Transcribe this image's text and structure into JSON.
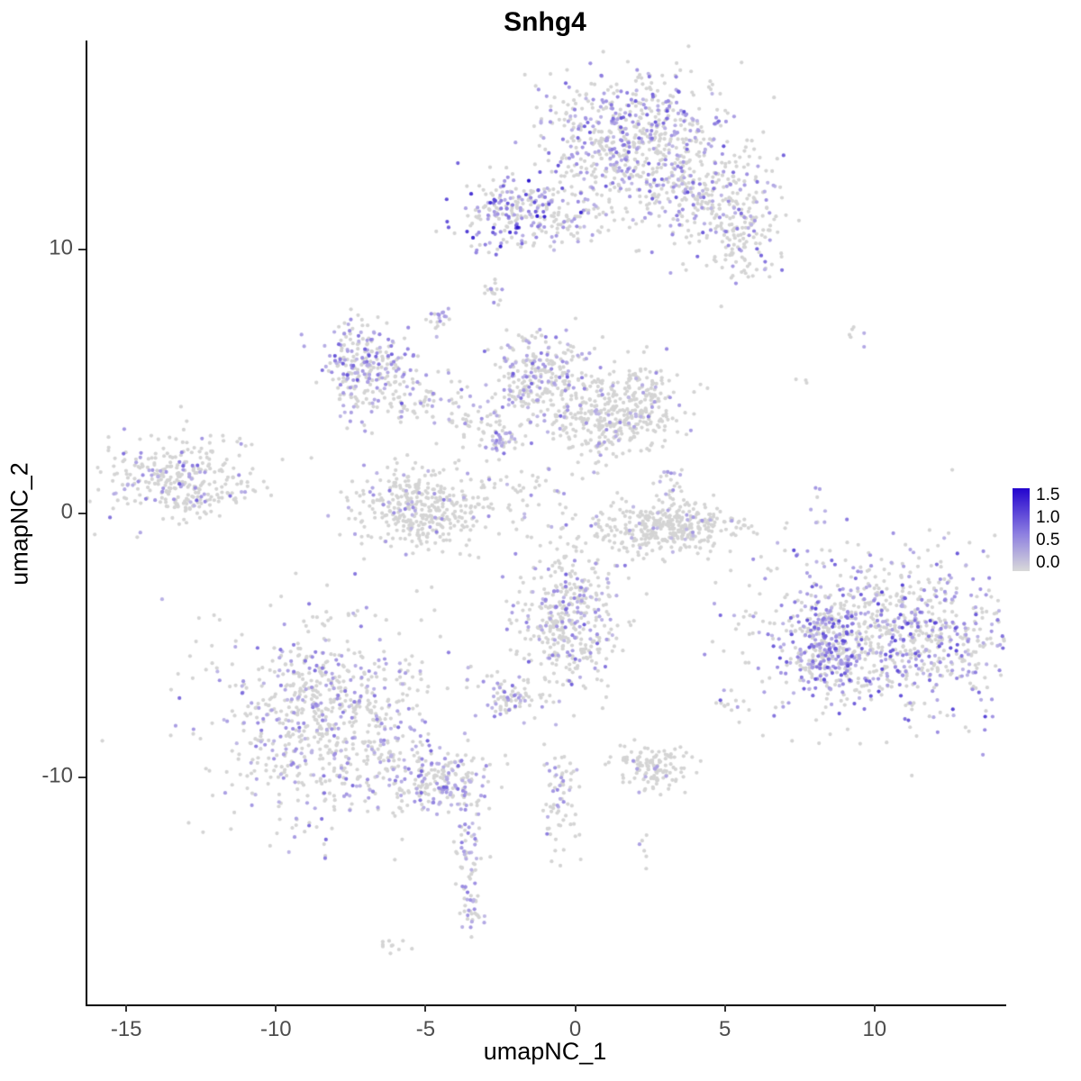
{
  "title": "Snhg4",
  "axes": {
    "x_label": "umapNC_1",
    "y_label": "umapNC_2",
    "x_ticks": [
      -15,
      -10,
      -5,
      0,
      5,
      10
    ],
    "y_ticks": [
      10,
      0,
      -10
    ],
    "x_range": [
      -16.3,
      14.4
    ],
    "y_range": [
      -18.6,
      17.9
    ]
  },
  "legend": {
    "ticks": [
      "1.5",
      "1.0",
      "0.5",
      "0.0"
    ],
    "high_color": "#2303CE",
    "mid_color": "#8D7FE0",
    "low_color": "#D9D9D9"
  },
  "chart_data": {
    "type": "scatter",
    "title": "Snhg4",
    "xlabel": "umapNC_1",
    "ylabel": "umapNC_2",
    "xlim": [
      -16.3,
      14.4
    ],
    "ylim": [
      -18.6,
      17.9
    ],
    "expression_range": [
      0.0,
      1.75
    ],
    "legend_ticks": [
      1.5,
      1.0,
      0.5,
      0.0
    ],
    "point_color_low": "#D4D4D4",
    "point_color_lowexpr": "#C9C4E6",
    "point_color_mid": "#9A8BE2",
    "point_color_high": "#2B16CE",
    "seed": 7,
    "point_radius": 2.1,
    "clusters": [
      {
        "cx": 1.9,
        "cy": 14.2,
        "rx": 1.45,
        "ry": 1.35,
        "n": 700,
        "expr_frac": 0.35,
        "vmax": 1.3
      },
      {
        "cx": 4.6,
        "cy": 11.8,
        "rx": 1.1,
        "ry": 0.85,
        "n": 250,
        "expr_frac": 0.25,
        "vmax": 1.2
      },
      {
        "cx": 5.7,
        "cy": 10.2,
        "rx": 0.6,
        "ry": 0.8,
        "n": 80,
        "expr_frac": 0.18,
        "vmax": 1.3
      },
      {
        "cx": -2.1,
        "cy": 11.4,
        "rx": 0.85,
        "ry": 0.7,
        "n": 220,
        "expr_frac": 0.4,
        "vmax": 1.75
      },
      {
        "cx": -0.3,
        "cy": 11.1,
        "rx": 0.9,
        "ry": 0.55,
        "n": 60,
        "expr_frac": 0.2,
        "vmax": 1.1
      },
      {
        "cx": -2.7,
        "cy": 8.5,
        "rx": 0.15,
        "ry": 0.3,
        "n": 15,
        "expr_frac": 0.3,
        "vmax": 0.9
      },
      {
        "cx": -4.5,
        "cy": 7.4,
        "rx": 0.2,
        "ry": 0.25,
        "n": 18,
        "expr_frac": 0.4,
        "vmax": 1.1
      },
      {
        "cx": -7.0,
        "cy": 5.5,
        "rx": 0.7,
        "ry": 0.9,
        "n": 260,
        "expr_frac": 0.45,
        "vmax": 1.3
      },
      {
        "cx": -5.0,
        "cy": 4.3,
        "rx": 0.9,
        "ry": 0.5,
        "n": 60,
        "expr_frac": 0.2,
        "vmax": 1.0
      },
      {
        "cx": -1.1,
        "cy": 5.3,
        "rx": 0.9,
        "ry": 0.8,
        "n": 280,
        "expr_frac": 0.3,
        "vmax": 1.2
      },
      {
        "cx": 1.9,
        "cy": 4.1,
        "rx": 0.75,
        "ry": 0.75,
        "n": 260,
        "expr_frac": 0.12,
        "vmax": 1.0
      },
      {
        "cx": 0.4,
        "cy": 3.6,
        "rx": 0.8,
        "ry": 0.5,
        "n": 120,
        "expr_frac": 0.1,
        "vmax": 0.8
      },
      {
        "cx": -2.4,
        "cy": 2.7,
        "rx": 0.3,
        "ry": 0.3,
        "n": 40,
        "expr_frac": 0.5,
        "vmax": 1.2
      },
      {
        "cx": -3.3,
        "cy": 3.6,
        "rx": 0.8,
        "ry": 0.5,
        "n": 50,
        "expr_frac": 0.2,
        "vmax": 0.9
      },
      {
        "cx": -1.7,
        "cy": 1.0,
        "rx": 0.9,
        "ry": 0.6,
        "n": 40,
        "expr_frac": 0.15,
        "vmax": 0.8
      },
      {
        "cx": -5.0,
        "cy": 0.2,
        "rx": 1.1,
        "ry": 0.8,
        "n": 380,
        "expr_frac": 0.12,
        "vmax": 1.0
      },
      {
        "cx": -13.1,
        "cy": 1.2,
        "rx": 1.25,
        "ry": 0.8,
        "n": 330,
        "expr_frac": 0.2,
        "vmax": 1.2
      },
      {
        "cx": 3.2,
        "cy": 1.2,
        "rx": 0.25,
        "ry": 0.5,
        "n": 25,
        "expr_frac": 0.3,
        "vmax": 1.0
      },
      {
        "cx": 3.1,
        "cy": -0.5,
        "rx": 1.25,
        "ry": 0.5,
        "n": 380,
        "expr_frac": 0.05,
        "vmax": 0.8
      },
      {
        "cx": -0.3,
        "cy": -3.9,
        "rx": 0.85,
        "ry": 1.45,
        "n": 420,
        "expr_frac": 0.25,
        "vmax": 1.2
      },
      {
        "cx": -2.3,
        "cy": -7.0,
        "rx": 0.5,
        "ry": 0.4,
        "n": 70,
        "expr_frac": 0.3,
        "vmax": 1.1
      },
      {
        "cx": 10.5,
        "cy": -4.6,
        "rx": 2.2,
        "ry": 1.55,
        "n": 950,
        "expr_frac": 0.4,
        "vmax": 1.4
      },
      {
        "cx": 8.4,
        "cy": -5.1,
        "rx": 0.5,
        "ry": 0.8,
        "n": 200,
        "expr_frac": 0.6,
        "vmax": 1.3
      },
      {
        "cx": 8.1,
        "cy": 0.3,
        "rx": 0.15,
        "ry": 0.5,
        "n": 8,
        "expr_frac": 0.5,
        "vmax": 1.2
      },
      {
        "cx": 9.4,
        "cy": 6.8,
        "rx": 0.2,
        "ry": 0.2,
        "n": 6,
        "expr_frac": 0.1,
        "vmax": 0.6
      },
      {
        "cx": 7.6,
        "cy": 5.0,
        "rx": 0.15,
        "ry": 0.15,
        "n": 3,
        "expr_frac": 0.1,
        "vmax": 0.5
      },
      {
        "cx": -8.3,
        "cy": -7.8,
        "rx": 1.85,
        "ry": 1.85,
        "n": 800,
        "expr_frac": 0.3,
        "vmax": 1.1
      },
      {
        "cx": -4.7,
        "cy": -10.1,
        "rx": 0.9,
        "ry": 0.6,
        "n": 220,
        "expr_frac": 0.35,
        "vmax": 1.2
      },
      {
        "cx": -3.6,
        "cy": -12.8,
        "rx": 0.25,
        "ry": 1.2,
        "n": 60,
        "expr_frac": 0.3,
        "vmax": 1.0
      },
      {
        "cx": -3.5,
        "cy": -15.0,
        "rx": 0.25,
        "ry": 0.45,
        "n": 25,
        "expr_frac": 0.4,
        "vmax": 1.1
      },
      {
        "cx": -6.0,
        "cy": -16.3,
        "rx": 0.3,
        "ry": 0.15,
        "n": 10,
        "expr_frac": 0.1,
        "vmax": 0.5
      },
      {
        "cx": -0.5,
        "cy": -10.9,
        "rx": 0.3,
        "ry": 1.1,
        "n": 70,
        "expr_frac": 0.25,
        "vmax": 1.0
      },
      {
        "cx": 2.5,
        "cy": -9.6,
        "rx": 0.65,
        "ry": 0.45,
        "n": 130,
        "expr_frac": 0.08,
        "vmax": 0.8
      },
      {
        "cx": 5.2,
        "cy": -7.3,
        "rx": 0.3,
        "ry": 0.3,
        "n": 12,
        "expr_frac": 0.1,
        "vmax": 0.6
      },
      {
        "cx": 2.3,
        "cy": -12.6,
        "rx": 0.15,
        "ry": 0.35,
        "n": 6,
        "expr_frac": 0.2,
        "vmax": 0.8
      },
      {
        "cx": 0.7,
        "cy": 2.4,
        "rx": 0.5,
        "ry": 0.4,
        "n": 30,
        "expr_frac": 0.1,
        "vmax": 0.7
      }
    ]
  }
}
